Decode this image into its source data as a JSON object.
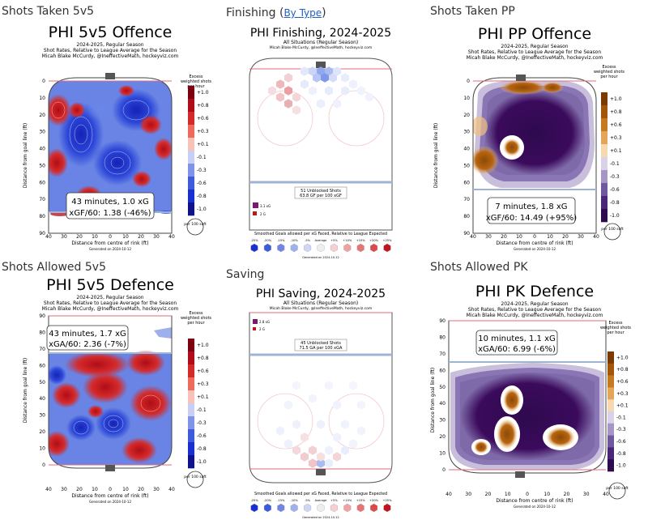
{
  "headings": {
    "shots_taken_5v5": "Shots Taken 5v5",
    "finishing": "Finishing",
    "finishing_link": "By Type",
    "shots_taken_pp": "Shots Taken PP",
    "shots_allowed_5v5": "Shots Allowed 5v5",
    "saving": "Saving",
    "shots_allowed_pk": "Shots Allowed PK"
  },
  "colors": {
    "red": "#c0141e",
    "blue": "#1a2fd0",
    "white": "#ffffff",
    "purple": "#3b0a5c",
    "orange": "#b8650f",
    "rink_line": "#e36d7b",
    "blue_line": "#9fb3d6"
  },
  "chart_data": [
    {
      "id": "offence5v5",
      "type": "heatmap",
      "title": "PHI 5v5 Offence",
      "subtitle1": "2024-2025, Regular Season",
      "subtitle2": "Shot Rates, Relative to League Average for the Season",
      "subtitle3": "Micah Blake McCurdy, @IneffectiveMath, hockeyviz.com",
      "legend_title": "Excess weighted shots per hour",
      "legend_ticks": [
        "+1.0",
        "+0.8",
        "+0.6",
        "+0.3",
        "+0.1",
        "-0.1",
        "-0.3",
        "-0.6",
        "-0.8",
        "-1.0"
      ],
      "ylabel": "Distance from goal line (ft)",
      "xlabel": "Distance from centre of rink (ft)",
      "x_ticks": [
        "40",
        "30",
        "20",
        "10",
        "0",
        "10",
        "20",
        "30",
        "40"
      ],
      "y_ticks": [
        "0",
        "10",
        "20",
        "30",
        "40",
        "50",
        "60",
        "70",
        "80",
        "90"
      ],
      "ylim": [
        0,
        90
      ],
      "xlim": [
        -42,
        42
      ],
      "info_line1": "43 minutes, 1.0 xG",
      "info_line2": "xGF/60: 1.38 (-46%)",
      "unit_label": "per 100 sqft",
      "generated": "Generated on 2024-10-12",
      "palette": "redblue"
    },
    {
      "id": "finishing",
      "type": "heatmap",
      "title": "PHI Finishing, 2024-2025",
      "subtitle1": "All Situations (Regular Season)",
      "subtitle2": "Micah Blake McCurdy, @IneffectiveMath, hockeyviz.com",
      "box_line1": "51 Unblocked Shots",
      "box_line2": "63.8 GF per 100 xGF",
      "size_legend": [
        "3.1 xG",
        "2 G"
      ],
      "scale_title": "Smoothed Goals allowed per xG Faced, Relative to League Expected",
      "scale_ticks": [
        "-25%",
        "-20%",
        "-15%",
        "-10%",
        "-5%",
        "Average",
        "+5%",
        "+10%",
        "+15%",
        "+20%",
        "+25%"
      ],
      "generated": "Generated on 2024-10-12"
    },
    {
      "id": "offencePP",
      "type": "heatmap",
      "title": "PHI PP Offence",
      "subtitle1": "2024-2025, Regular Season",
      "subtitle2": "Shot Rates, Relative to League Average for the Season",
      "subtitle3": "Micah Blake McCurdy, @IneffectiveMath, hockeyviz.com",
      "legend_title": "Excess weighted shots per hour",
      "legend_ticks": [
        "+1.0",
        "+0.8",
        "+0.6",
        "+0.3",
        "+0.1",
        "-0.1",
        "-0.3",
        "-0.6",
        "-0.8",
        "-1.0"
      ],
      "ylabel": "Distance from goal line (ft)",
      "xlabel": "Distance from centre of rink (ft)",
      "x_ticks": [
        "40",
        "30",
        "20",
        "10",
        "0",
        "10",
        "20",
        "30",
        "40"
      ],
      "y_ticks": [
        "0",
        "10",
        "20",
        "30",
        "40",
        "50",
        "60",
        "70",
        "80",
        "90"
      ],
      "ylim": [
        0,
        90
      ],
      "xlim": [
        -42,
        42
      ],
      "info_line1": "7 minutes, 1.8 xG",
      "info_line2": "xGF/60: 14.49 (+95%)",
      "unit_label": "per 100 sqft",
      "generated": "Generated on 2024-10-12",
      "palette": "purpleorange"
    },
    {
      "id": "defence5v5",
      "type": "heatmap",
      "title": "PHI 5v5 Defence",
      "subtitle1": "2024-2025, Regular Season",
      "subtitle2": "Shot Rates, Relative to League Average for the Season",
      "subtitle3": "Micah Blake McCurdy, @IneffectiveMath, hockeyviz.com",
      "legend_title": "Excess weighted shots per hour",
      "legend_ticks": [
        "+1.0",
        "+0.8",
        "+0.6",
        "+0.3",
        "+0.1",
        "-0.1",
        "-0.3",
        "-0.6",
        "-0.8",
        "-1.0"
      ],
      "ylabel": "Distance from goal line (ft)",
      "xlabel": "Distance from centre of rink (ft)",
      "x_ticks": [
        "40",
        "30",
        "20",
        "10",
        "0",
        "10",
        "20",
        "30",
        "40"
      ],
      "y_ticks": [
        "90",
        "80",
        "70",
        "60",
        "50",
        "40",
        "30",
        "20",
        "10",
        "0"
      ],
      "ylim": [
        0,
        90
      ],
      "xlim": [
        -42,
        42
      ],
      "info_line1": "43 minutes, 1.7 xG",
      "info_line2": "xGA/60: 2.36 (-7%)",
      "unit_label": "per 100 sqft",
      "generated": "Generated on 2024-10-12",
      "palette": "redblue"
    },
    {
      "id": "saving",
      "type": "heatmap",
      "title": "PHI Saving, 2024-2025",
      "subtitle1": "All Situations (Regular Season)",
      "subtitle2": "Micah Blake McCurdy, @IneffectiveMath, hockeyviz.com",
      "box_line1": "45 Unblocked Shots",
      "box_line2": "71.5 GA per 100 xGA",
      "size_legend": [
        "2.8 xG",
        "2 G"
      ],
      "scale_title": "Smoothed Goals allowed per xG Faced, Relative to League Expected",
      "scale_ticks": [
        "-25%",
        "-20%",
        "-15%",
        "-10%",
        "-5%",
        "Average",
        "+5%",
        "+10%",
        "+15%",
        "+20%",
        "+25%"
      ],
      "generated": "Generated on 2024-10-12"
    },
    {
      "id": "defencePK",
      "type": "heatmap",
      "title": "PHI PK Defence",
      "subtitle1": "2024-2025, Regular Season",
      "subtitle2": "Shot Rates, Relative to League Average for the Season",
      "subtitle3": "Micah Blake McCurdy, @IneffectiveMath, hockeyviz.com",
      "legend_title": "Excess weighted shots per hour",
      "legend_ticks": [
        "+1.0",
        "+0.8",
        "+0.6",
        "+0.3",
        "+0.1",
        "-0.1",
        "-0.3",
        "-0.6",
        "-0.8",
        "-1.0"
      ],
      "ylabel": "Distance from goal line (ft)",
      "xlabel": "Distance from centre of rink (ft)",
      "x_ticks": [
        "40",
        "30",
        "20",
        "10",
        "0",
        "10",
        "20",
        "30",
        "40"
      ],
      "y_ticks": [
        "90",
        "80",
        "70",
        "60",
        "50",
        "40",
        "30",
        "20",
        "10",
        "0"
      ],
      "ylim": [
        0,
        90
      ],
      "xlim": [
        -42,
        42
      ],
      "info_line1": "10 minutes, 1.1 xG",
      "info_line2": "xGA/60: 6.99 (-6%)",
      "unit_label": "per 100 sqft",
      "generated": "Generated on 2024-10-12",
      "palette": "purpleorange"
    }
  ]
}
